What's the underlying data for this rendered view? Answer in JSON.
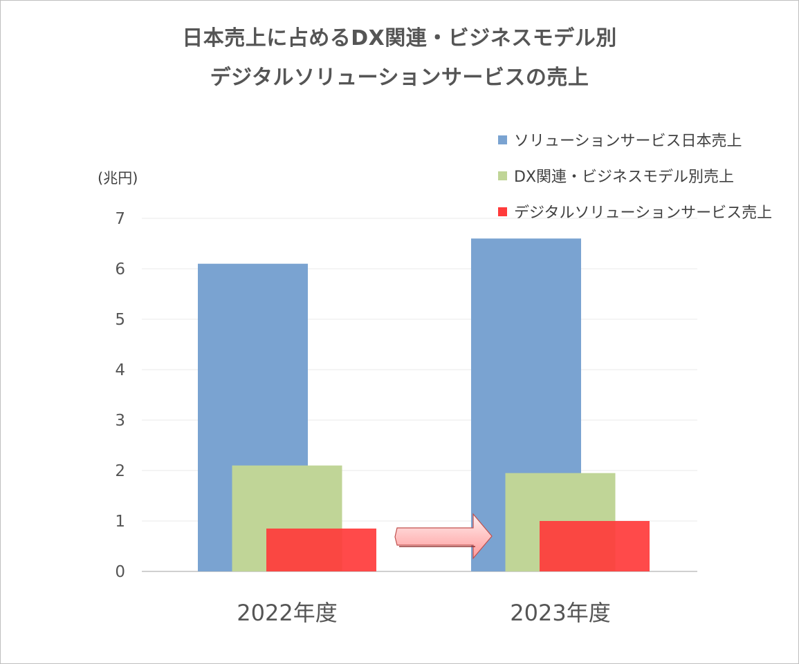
{
  "chart_data": {
    "type": "bar",
    "title": [
      "日本売上に占めるDX関連・ビジネスモデル別",
      "デジタルソリューションサービスの売上"
    ],
    "ylabel": "(兆円)",
    "xlabel": "",
    "ylim": [
      0,
      7
    ],
    "yticks": [
      "0",
      "1",
      "2",
      "3",
      "4",
      "5",
      "6",
      "7"
    ],
    "categories": [
      "2022年度",
      "2023年度"
    ],
    "series": [
      {
        "name": "ソリューションサービス日本売上",
        "values": [
          6.1,
          6.6
        ],
        "color": "#7aa3d1"
      },
      {
        "name": "DX関連・ビジネスモデル別売上",
        "values": [
          2.1,
          1.95
        ],
        "color": "#c0d597"
      },
      {
        "name": "デジタルソリューションサービス売上",
        "values": [
          0.85,
          1.0
        ],
        "color": "#ff3b3b"
      }
    ],
    "legend_position": "top-right",
    "annotation": "arrow-right-increase"
  }
}
